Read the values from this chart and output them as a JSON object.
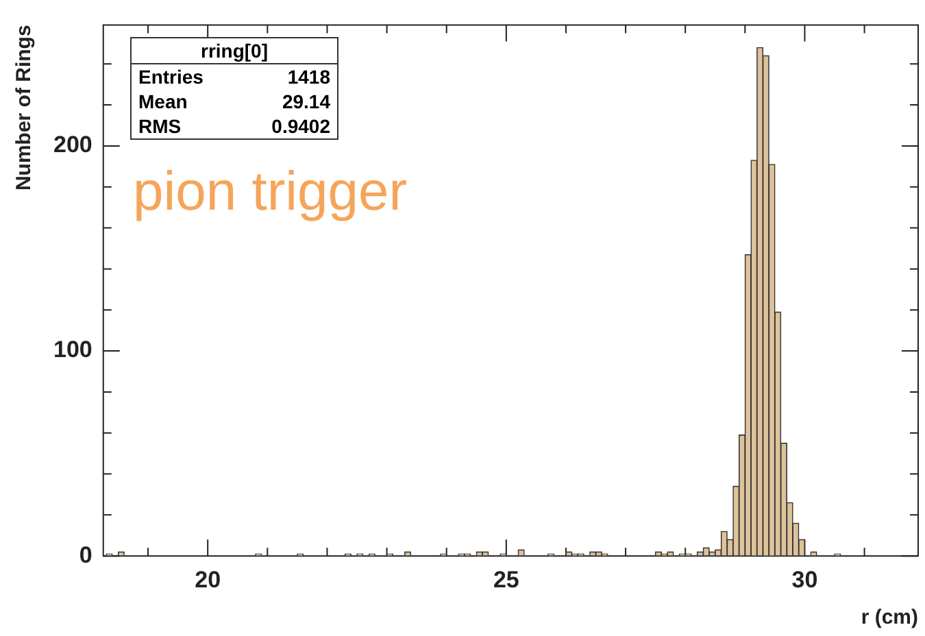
{
  "chart_data": {
    "type": "histogram",
    "xlabel": "r (cm)",
    "ylabel": "Number of Rings",
    "bins": [
      18.3,
      18.4,
      18.5,
      18.6,
      18.7,
      18.8,
      18.9,
      19.0,
      19.1,
      19.2,
      19.3,
      19.4,
      19.5,
      19.6,
      19.7,
      19.8,
      19.9,
      20.0,
      20.1,
      20.2,
      20.3,
      20.4,
      20.5,
      20.6,
      20.7,
      20.8,
      20.9,
      21.0,
      21.1,
      21.2,
      21.3,
      21.4,
      21.5,
      21.6,
      21.7,
      21.8,
      21.9,
      22.0,
      22.1,
      22.2,
      22.3,
      22.4,
      22.5,
      22.6,
      22.7,
      22.8,
      22.9,
      23.0,
      23.1,
      23.2,
      23.3,
      23.4,
      23.5,
      23.6,
      23.7,
      23.8,
      23.9,
      24.0,
      24.1,
      24.2,
      24.3,
      24.4,
      24.5,
      24.6,
      24.7,
      24.8,
      24.9,
      25.0,
      25.1,
      25.2,
      25.3,
      25.4,
      25.5,
      25.6,
      25.7,
      25.8,
      25.9,
      26.0,
      26.1,
      26.2,
      26.3,
      26.4,
      26.5,
      26.6,
      26.7,
      26.8,
      26.9,
      27.0,
      27.1,
      27.2,
      27.3,
      27.4,
      27.5,
      27.6,
      27.7,
      27.8,
      27.9,
      28.0,
      28.1,
      28.2,
      28.3,
      28.4,
      28.5,
      28.6,
      28.7,
      28.8,
      28.9,
      29.0,
      29.1,
      29.2,
      29.3,
      29.4,
      29.5,
      29.6,
      29.7,
      29.8,
      29.9,
      30.0,
      30.1,
      30.2,
      30.3,
      30.4,
      30.5,
      30.6,
      30.7,
      30.8,
      30.9,
      31.0,
      31.1,
      31.2,
      31.3,
      31.4,
      31.5,
      31.6,
      31.7,
      31.8
    ],
    "values": [
      1,
      0,
      2,
      0,
      0,
      0,
      0,
      0,
      0,
      0,
      0,
      0,
      0,
      0,
      0,
      0,
      0,
      0,
      0,
      0,
      0,
      0,
      0,
      0,
      0,
      1,
      0,
      0,
      0,
      0,
      0,
      0,
      1,
      0,
      0,
      0,
      0,
      0,
      0,
      0,
      1,
      0,
      1,
      0,
      1,
      0,
      0,
      1,
      0,
      0,
      2,
      0,
      0,
      0,
      0,
      0,
      1,
      0,
      0,
      1,
      1,
      0,
      2,
      2,
      0,
      0,
      1,
      0,
      0,
      3,
      0,
      0,
      0,
      0,
      1,
      0,
      0,
      2,
      1,
      1,
      0,
      2,
      2,
      1,
      0,
      0,
      0,
      0,
      0,
      0,
      0,
      0,
      2,
      1,
      2,
      0,
      1,
      1,
      0,
      2,
      4,
      2,
      3,
      12,
      8,
      34,
      59,
      147,
      193,
      248,
      244,
      191,
      119,
      55,
      26,
      16,
      8,
      0,
      2,
      0,
      0,
      0,
      1,
      0,
      0,
      0,
      0,
      0,
      0,
      0,
      0,
      0,
      0,
      0,
      0
    ],
    "color": "#dec29b",
    "xlim": [
      18.25,
      31.9
    ],
    "xticks": [
      {
        "value": 19,
        "label": null
      },
      20,
      {
        "value": 21,
        "label": null
      },
      {
        "value": 22,
        "label": null
      },
      {
        "value": 23,
        "label": null
      },
      {
        "value": 24,
        "label": null
      },
      25,
      {
        "value": 26,
        "label": null
      },
      {
        "value": 27,
        "label": null
      },
      {
        "value": 28,
        "label": null
      },
      {
        "value": 29,
        "label": null
      },
      30,
      {
        "value": 31,
        "label": null
      }
    ],
    "ylim": [
      0,
      259
    ],
    "yticks": [
      0,
      {
        "value": 20,
        "label": null
      },
      {
        "value": 40,
        "label": null
      },
      {
        "value": 60,
        "label": null
      },
      {
        "value": 80,
        "label": null
      },
      100,
      {
        "value": 120,
        "label": null
      },
      {
        "value": 140,
        "label": null
      },
      {
        "value": 160,
        "label": null
      },
      {
        "value": 180,
        "label": null
      },
      200,
      {
        "value": 220,
        "label": null
      },
      {
        "value": 240,
        "label": null
      }
    ],
    "grid": false,
    "legend": false,
    "annotations": [
      "rring[0]",
      "Entries",
      "1418",
      "Mean",
      "29.14",
      "RMS",
      "0.9402",
      "pion trigger"
    ]
  }
}
